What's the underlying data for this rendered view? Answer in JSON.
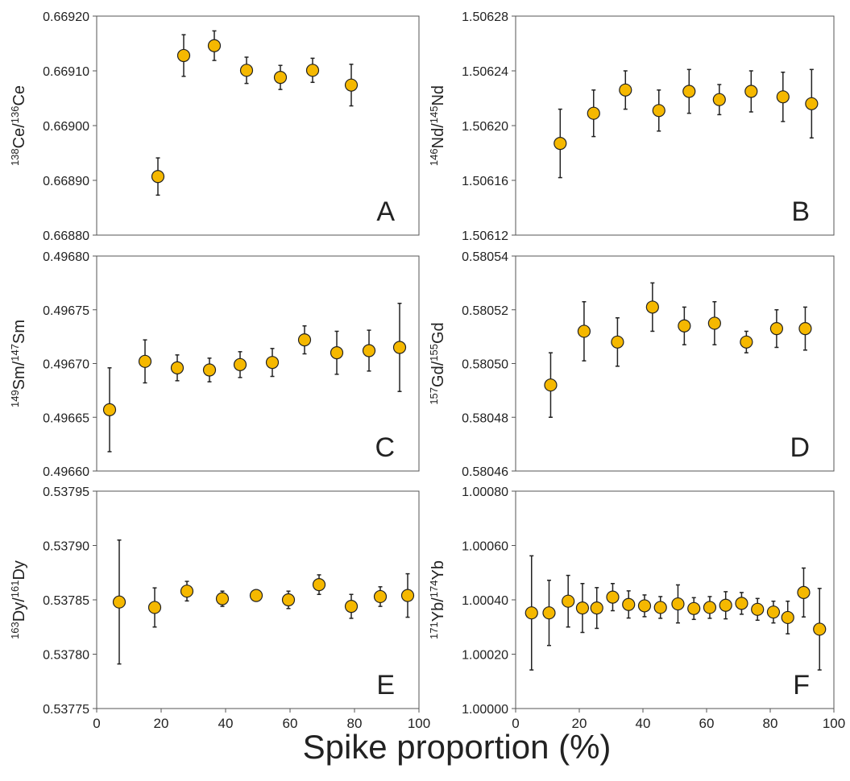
{
  "xlabel": "Spike proportion (%)",
  "chart_data": [
    {
      "type": "scatter",
      "annotation": "A",
      "ylabel": [
        {
          "text": "138",
          "sup": true
        },
        {
          "text": "Ce/"
        },
        {
          "text": "136",
          "sup": true
        },
        {
          "text": "Ce"
        }
      ],
      "xlim": [
        0,
        100
      ],
      "ylim": [
        0.6688,
        0.6692
      ],
      "yticks": [
        {
          "value": 0.6688,
          "label": "0.66880"
        },
        {
          "value": 0.6689,
          "label": "0.66890"
        },
        {
          "value": 0.669,
          "label": "0.66900"
        },
        {
          "value": 0.6691,
          "label": "0.66910"
        },
        {
          "value": 0.6692,
          "label": "0.66920"
        }
      ],
      "x": [
        19,
        27,
        36.5,
        46.5,
        57,
        67,
        79
      ],
      "series": [
        {
          "color": "#f5b800",
          "values": [
            0.668907,
            0.669128,
            0.669146,
            0.669101,
            0.669088,
            0.669101,
            0.669074
          ],
          "errors": [
            3.4e-05,
            3.8e-05,
            2.7e-05,
            2.4e-05,
            2.2e-05,
            2.2e-05,
            3.8e-05
          ]
        }
      ]
    },
    {
      "type": "scatter",
      "annotation": "B",
      "ylabel": [
        {
          "text": "146",
          "sup": true
        },
        {
          "text": "Nd/"
        },
        {
          "text": "145",
          "sup": true
        },
        {
          "text": "Nd"
        }
      ],
      "xlim": [
        0,
        100
      ],
      "ylim": [
        1.50612,
        1.50628
      ],
      "yticks": [
        1.50612,
        1.50616,
        {
          "value": 1.5062,
          "label": "1.50620"
        },
        1.50624,
        1.50628
      ],
      "x": [
        14,
        24.5,
        34.5,
        45,
        54.5,
        64,
        74,
        84,
        93
      ],
      "series": [
        {
          "color": "#f5b800",
          "values": [
            1.506187,
            1.506209,
            1.506226,
            1.506211,
            1.506225,
            1.506219,
            1.506225,
            1.506221,
            1.506216
          ],
          "errors": [
            2.5e-05,
            1.7e-05,
            1.4e-05,
            1.5e-05,
            1.6e-05,
            1.1e-05,
            1.5e-05,
            1.8e-05,
            2.5e-05
          ]
        }
      ]
    },
    {
      "type": "scatter",
      "annotation": "C",
      "ylabel": [
        {
          "text": "149",
          "sup": true
        },
        {
          "text": "Sm/"
        },
        {
          "text": "147",
          "sup": true
        },
        {
          "text": "Sm"
        }
      ],
      "xlim": [
        0,
        100
      ],
      "ylim": [
        0.4966,
        0.4968
      ],
      "yticks": [
        {
          "value": 0.4966,
          "label": "0.49660"
        },
        0.49665,
        {
          "value": 0.4967,
          "label": "0.49670"
        },
        0.49675,
        {
          "value": 0.4968,
          "label": "0.49680"
        }
      ],
      "x": [
        4,
        15,
        25,
        35,
        44.5,
        54.5,
        64.5,
        74.5,
        84.5,
        94
      ],
      "series": [
        {
          "color": "#f5b800",
          "values": [
            0.496657,
            0.496702,
            0.496696,
            0.496694,
            0.496699,
            0.496701,
            0.496722,
            0.49671,
            0.496712,
            0.496715
          ],
          "errors": [
            3.9e-05,
            2e-05,
            1.2e-05,
            1.1e-05,
            1.2e-05,
            1.3e-05,
            1.3e-05,
            2e-05,
            1.9e-05,
            4.1e-05
          ]
        }
      ]
    },
    {
      "type": "scatter",
      "annotation": "D",
      "ylabel": [
        {
          "text": "157",
          "sup": true
        },
        {
          "text": "Gd/"
        },
        {
          "text": "155",
          "sup": true
        },
        {
          "text": "Gd"
        }
      ],
      "xlim": [
        0,
        100
      ],
      "ylim": [
        0.58046,
        0.58054
      ],
      "yticks": [
        0.58046,
        0.58048,
        {
          "value": 0.5805,
          "label": "0.58050"
        },
        0.58052,
        0.58054
      ],
      "x": [
        11,
        21.5,
        32,
        43,
        53,
        62.5,
        72.5,
        82,
        91
      ],
      "series": [
        {
          "color": "#f5b800",
          "values": [
            0.580492,
            0.580512,
            0.580508,
            0.580521,
            0.580514,
            0.580515,
            0.580508,
            0.580513,
            0.580513
          ],
          "errors": [
            1.2e-05,
            1.1e-05,
            9e-06,
            9e-06,
            7e-06,
            8e-06,
            4e-06,
            7e-06,
            8e-06
          ]
        }
      ]
    },
    {
      "type": "scatter",
      "annotation": "E",
      "ylabel": [
        {
          "text": "163",
          "sup": true
        },
        {
          "text": "Dy/"
        },
        {
          "text": "161",
          "sup": true
        },
        {
          "text": "Dy"
        }
      ],
      "xlim": [
        0,
        100
      ],
      "ylim": [
        0.53775,
        0.53795
      ],
      "xticks": [
        0,
        20,
        40,
        60,
        80,
        100
      ],
      "yticks": [
        0.53775,
        {
          "value": 0.5378,
          "label": "0.53780"
        },
        0.53785,
        {
          "value": 0.5379,
          "label": "0.53790"
        },
        0.53795
      ],
      "x": [
        7,
        18,
        28,
        39,
        49.5,
        59.5,
        69,
        79,
        88,
        96.5
      ],
      "series": [
        {
          "color": "#f5b800",
          "values": [
            0.537848,
            0.537843,
            0.537858,
            0.537851,
            0.537854,
            0.53785,
            0.537864,
            0.537844,
            0.537853,
            0.537854
          ],
          "errors": [
            5.7e-05,
            1.8e-05,
            9e-06,
            7e-06,
            3e-06,
            8e-06,
            9e-06,
            1.1e-05,
            9e-06,
            2e-05
          ]
        }
      ]
    },
    {
      "type": "scatter",
      "annotation": "F",
      "ylabel": [
        {
          "text": "171",
          "sup": true
        },
        {
          "text": "Yb/"
        },
        {
          "text": "174",
          "sup": true
        },
        {
          "text": "Yb"
        }
      ],
      "xlim": [
        0,
        100
      ],
      "ylim": [
        1.0,
        1.0008
      ],
      "xticks": [
        0,
        20,
        40,
        60,
        80,
        100
      ],
      "yticks": [
        {
          "value": 1.0,
          "label": "1.00000"
        },
        {
          "value": 1.0002,
          "label": "1.00020"
        },
        {
          "value": 1.0004,
          "label": "1.00040"
        },
        {
          "value": 1.0006,
          "label": "1.00060"
        },
        {
          "value": 1.0008,
          "label": "1.00080"
        }
      ],
      "x": [
        5,
        10.5,
        16.5,
        21,
        25.5,
        30.5,
        35.5,
        40.5,
        45.5,
        51,
        56,
        61,
        66,
        71,
        76,
        81,
        85.5,
        90.5,
        95.5
      ],
      "series": [
        {
          "color": "#f5b800",
          "values": [
            1.000352,
            1.000352,
            1.000395,
            1.00037,
            1.00037,
            1.00041,
            1.000383,
            1.000378,
            1.000372,
            1.000385,
            1.000368,
            1.000372,
            1.00038,
            1.000387,
            1.000365,
            1.000355,
            1.000335,
            1.000427,
            1.000292
          ],
          "errors": [
            0.00021,
            0.00012,
            9.5e-05,
            9e-05,
            7.5e-05,
            5e-05,
            5e-05,
            4e-05,
            4e-05,
            7e-05,
            4e-05,
            4e-05,
            5e-05,
            4e-05,
            4e-05,
            4e-05,
            6e-05,
            9e-05,
            0.00015
          ]
        }
      ]
    }
  ]
}
